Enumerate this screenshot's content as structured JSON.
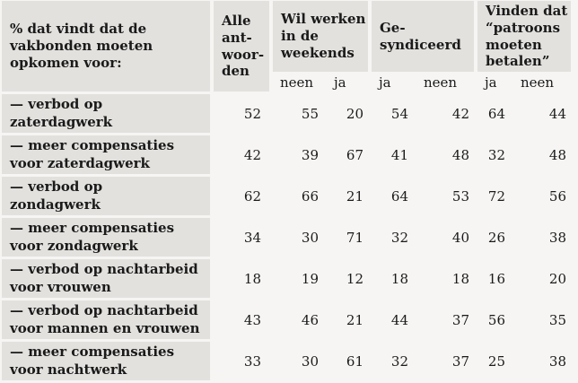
{
  "colors": {
    "cell_background": "#e2e1de",
    "page_background": "#f6f5f3",
    "text": "#1a1a1a"
  },
  "table": {
    "corner_header": "% dat vindt dat de\nvakbonden moeten\nopkomen voor:",
    "groups": [
      {
        "label": "Alle\nant-\nwoor-\nden",
        "subs": []
      },
      {
        "label": "Wil werken\nin de\nweekends",
        "subs": [
          "neen",
          "ja"
        ]
      },
      {
        "label": "Ge-\nsyndiceerd",
        "subs": [
          "ja",
          "neen"
        ]
      },
      {
        "label": "Vinden dat\n“patroons\nmoeten\nbetalen”",
        "subs": [
          "ja",
          "neen"
        ]
      }
    ],
    "rows": [
      {
        "label": "— verbod op\nzaterdagwerk",
        "values": [
          52,
          55,
          20,
          54,
          42,
          64,
          44
        ]
      },
      {
        "label": "— meer compensaties\nvoor zaterdagwerk",
        "values": [
          42,
          39,
          67,
          41,
          48,
          32,
          48
        ]
      },
      {
        "label": "— verbod op\nzondagwerk",
        "values": [
          62,
          66,
          21,
          64,
          53,
          72,
          56
        ]
      },
      {
        "label": "— meer compensaties\nvoor zondagwerk",
        "values": [
          34,
          30,
          71,
          32,
          40,
          26,
          38
        ]
      },
      {
        "label": "— verbod op nachtarbeid\nvoor vrouwen",
        "values": [
          18,
          19,
          12,
          18,
          18,
          16,
          20
        ]
      },
      {
        "label": "— verbod op nachtarbeid\nvoor mannen en vrouwen",
        "values": [
          43,
          46,
          21,
          44,
          37,
          56,
          35
        ]
      },
      {
        "label": "— meer compensaties\nvoor nachtwerk",
        "values": [
          33,
          30,
          61,
          32,
          37,
          25,
          38
        ]
      }
    ]
  }
}
